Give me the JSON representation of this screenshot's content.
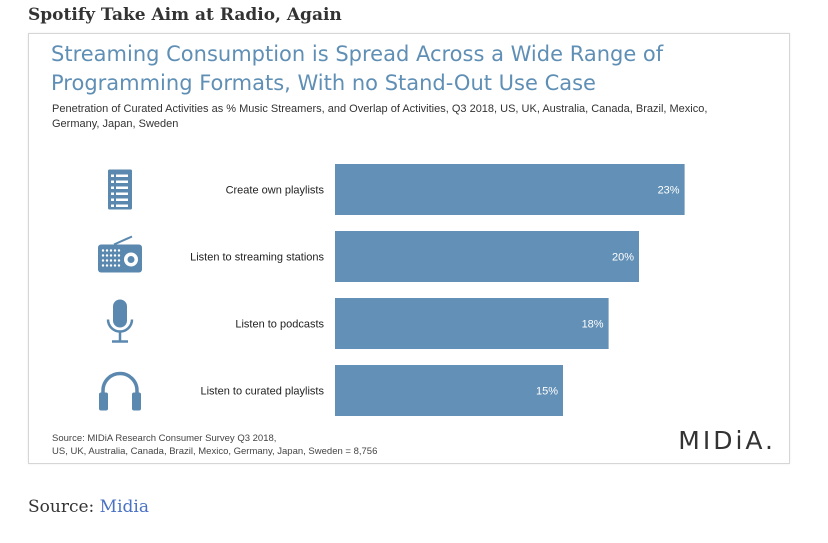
{
  "page": {
    "heading": "Spotify Take Aim at Radio, Again",
    "source_label": "Source:",
    "source_link": "Midia"
  },
  "colors": {
    "bar": "#6290b6",
    "icon": "#5a88ae",
    "title": "#5f8fb5"
  },
  "chart_data": {
    "type": "bar",
    "orientation": "horizontal",
    "title": "Streaming Consumption is Spread Across a Wide Range of Programming Formats, With no Stand-Out Use Case",
    "title_line1": "Streaming Consumption is Spread Across a Wide Range of",
    "title_line2": "Programming Formats, With no Stand-Out Use Case",
    "subtitle": "Penetration of Curated Activities as % Music Streamers, and Overlap of Activities, Q3 2018, US, UK, Australia, Canada, Brazil, Mexico, Germany, Japan, Sweden",
    "categories": [
      "Create own playlists",
      "Listen to streaming stations",
      "Listen to podcasts",
      "Listen to curated playlists"
    ],
    "values": [
      23,
      20,
      18,
      15
    ],
    "value_labels": [
      "23%",
      "20%",
      "18%",
      "15%"
    ],
    "icons": [
      "document-list-icon",
      "radio-icon",
      "microphone-icon",
      "headphones-icon"
    ],
    "xlim": [
      0,
      25
    ],
    "unit": "%",
    "grid": false,
    "legend": "none",
    "source_line1": "Source: MIDiA Research Consumer Survey Q3 2018,",
    "source_line2": "US, UK, Australia, Canada, Brazil, Mexico, Germany, Japan, Sweden = 8,756",
    "logo": "MIDiA."
  }
}
